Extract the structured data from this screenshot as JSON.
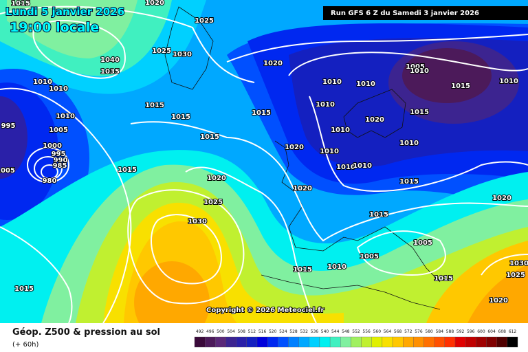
{
  "header": {
    "date": "Lundi 5 janvier 2026",
    "time": "19:00 locale",
    "run": "Run GFS 6 Z du Samedi 3 janvier 2026"
  },
  "copyright": "Copyright © 2026 Meteociel.fr",
  "legend": {
    "title": "Géop. Z500 & pression au sol",
    "lead": "(+ 60h)",
    "levels": [
      492,
      496,
      500,
      504,
      508,
      512,
      516,
      520,
      524,
      528,
      532,
      536,
      540,
      544,
      548,
      552,
      556,
      560,
      564,
      568,
      572,
      576,
      580,
      584,
      588,
      592,
      596,
      600,
      604,
      608,
      612
    ],
    "colors": [
      "#3a0a3a",
      "#4c1a5a",
      "#5a2878",
      "#3c2490",
      "#2a20a8",
      "#1420c0",
      "#0000dc",
      "#0028f0",
      "#0050ff",
      "#0080ff",
      "#00a8ff",
      "#00d0ff",
      "#00f0f0",
      "#40f0c0",
      "#80f0a0",
      "#a0f060",
      "#c0f030",
      "#e0f000",
      "#f8e000",
      "#ffc800",
      "#ffa800",
      "#ff9000",
      "#ff7000",
      "#ff5000",
      "#ff3000",
      "#e00000",
      "#c00000",
      "#a00000",
      "#800000",
      "#500000",
      "#000000"
    ]
  },
  "isobar_labels": [
    1015,
    1020,
    1025,
    1025,
    1030,
    1040,
    1035,
    1010,
    1010,
    1020,
    1015,
    1015,
    1015,
    1010,
    995,
    1005,
    1015,
    1000,
    995,
    990,
    985,
    980,
    1005,
    1015,
    1020,
    1025,
    1030,
    1020,
    1020,
    1005,
    1010,
    1010,
    1010,
    1015,
    1010,
    1010,
    1020,
    1015,
    1010,
    1010,
    1010,
    1010,
    1010,
    1015,
    1020,
    1015,
    1005,
    1005,
    1010,
    1015,
    1015,
    1030,
    1025,
    1020,
    1015
  ]
}
